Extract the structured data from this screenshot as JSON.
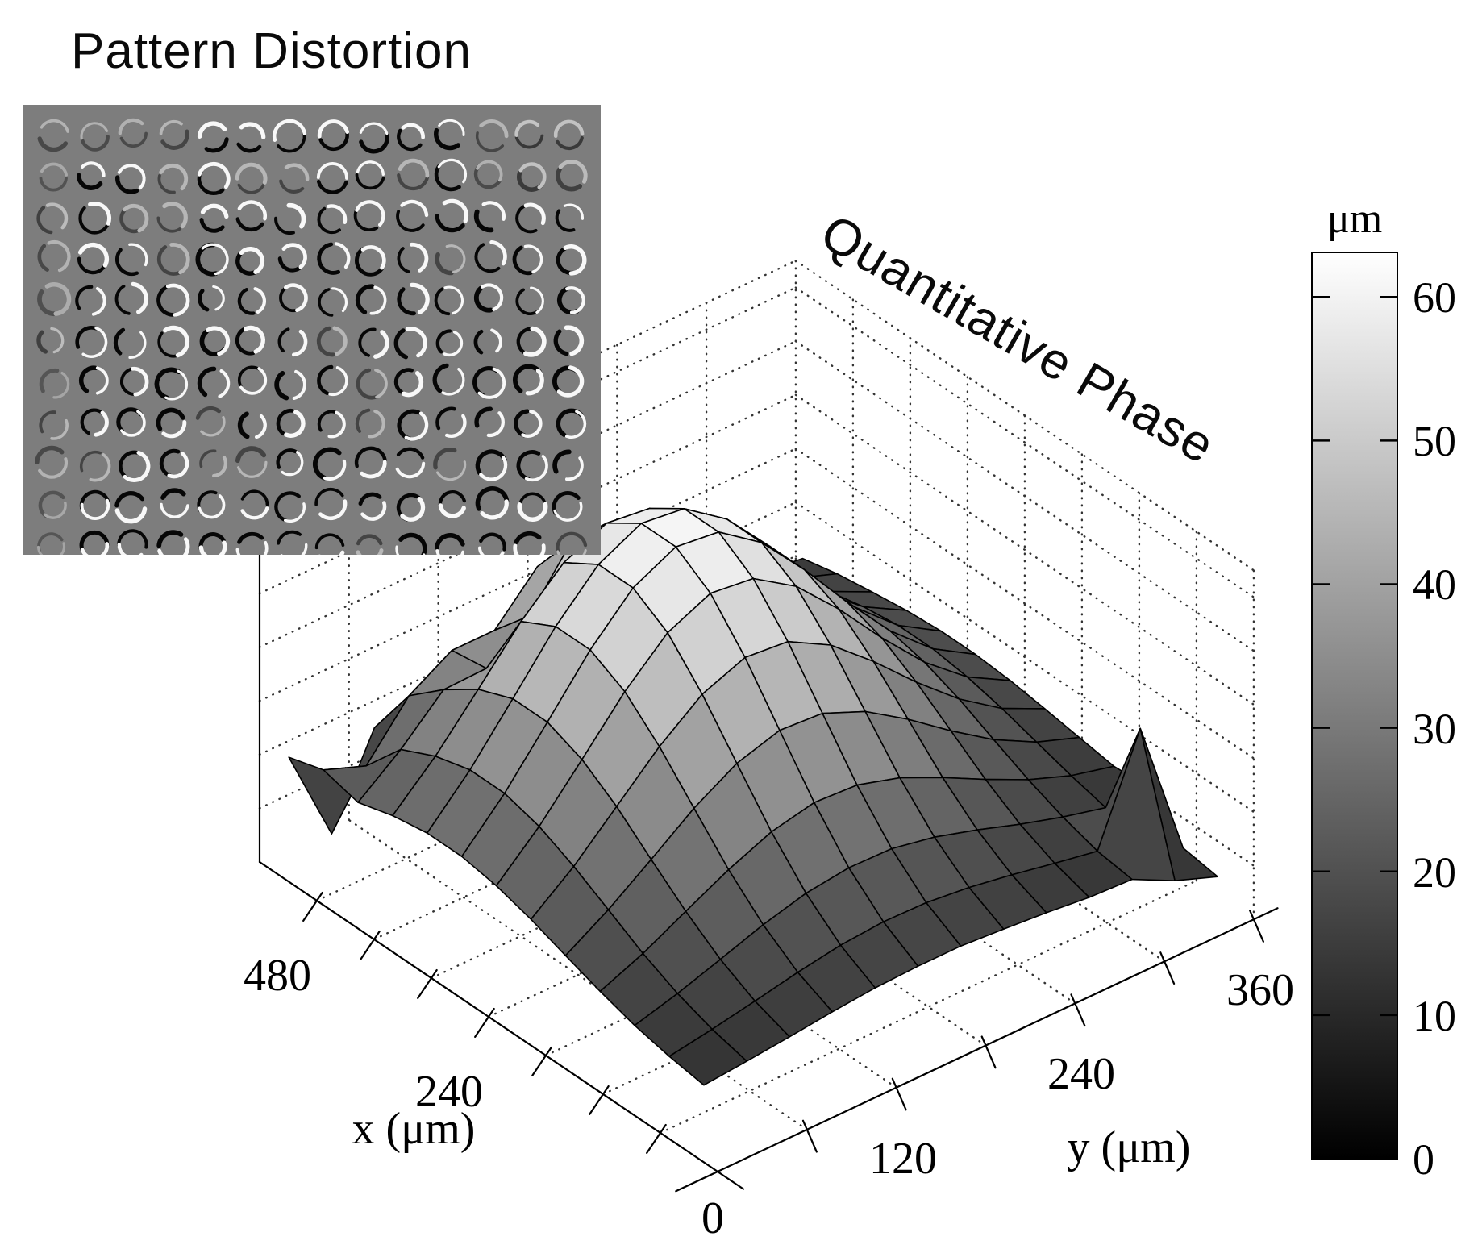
{
  "titles": {
    "inset_title": "Pattern Distortion",
    "surface_title": "Quantitative Phase"
  },
  "inset": {
    "background": "#7d7d7d",
    "rows": 11,
    "cols": 14,
    "highlight_color": "#ffffff",
    "shadow_color": "#000000"
  },
  "colorbar": {
    "unit": "μm",
    "min": 0,
    "max": 63.1,
    "tick_values": [
      0,
      10,
      20,
      30,
      40,
      50,
      60
    ],
    "tick_labels": [
      "0",
      "10",
      "20",
      "30",
      "40",
      "50",
      "60"
    ],
    "color_low": "#000000",
    "color_high": "#ffffff"
  },
  "axes": {
    "x": {
      "title": "x  (μm)",
      "lim": [
        0,
        640
      ],
      "tick_step": 80,
      "tick_labels": [
        {
          "value": 0,
          "label": "0"
        },
        {
          "value": 240,
          "label": "240"
        },
        {
          "value": 480,
          "label": "480"
        }
      ]
    },
    "y": {
      "title": "y (μm)",
      "lim": [
        0,
        360
      ],
      "tick_step": 60,
      "tick_labels": [
        {
          "value": 120,
          "label": "120"
        },
        {
          "value": 240,
          "label": "240"
        },
        {
          "value": 360,
          "label": "360"
        }
      ]
    },
    "z": {
      "lim": [
        0,
        65
      ],
      "grid_step": 10
    }
  },
  "chart_data": {
    "type": "surface",
    "title": "Quantitative Phase",
    "xlabel": "x  (μm)",
    "ylabel": "y (μm)",
    "zunit": "μm",
    "xlim": [
      0,
      640
    ],
    "ylim": [
      0,
      360
    ],
    "zlim": [
      0,
      65
    ],
    "colormap": "gray",
    "grid": true,
    "x": [
      40.0,
      88.3,
      136.7,
      185.0,
      233.3,
      281.7,
      330.0,
      378.3,
      426.7,
      475.0,
      523.3,
      571.7,
      620.0
    ],
    "y": [
      10.0,
      38.75,
      67.5,
      96.25,
      125.0,
      153.75,
      182.5,
      211.25,
      240.0,
      268.75,
      297.5,
      326.25,
      355.0
    ],
    "z": [
      [
        11.2,
        11.9,
        12.7,
        13.6,
        14.3,
        14.6,
        14.6,
        14.0,
        13.3,
        12.4,
        12.0,
        8.0,
        5.0
      ],
      [
        12.2,
        13.5,
        15.0,
        16.6,
        17.9,
        18.5,
        18.3,
        17.4,
        16.0,
        14.4,
        12.9,
        32.0,
        6.0
      ],
      [
        13.6,
        15.8,
        18.4,
        21.1,
        23.2,
        24.2,
        24.0,
        22.4,
        20.0,
        17.3,
        14.9,
        12.9,
        13.0
      ],
      [
        15.6,
        18.9,
        23.0,
        27.0,
        30.3,
        32.0,
        31.5,
        29.1,
        25.4,
        21.3,
        17.5,
        14.5,
        12.5
      ],
      [
        17.9,
        22.7,
        28.3,
        34.1,
        38.7,
        41.1,
        40.5,
        37.1,
        31.9,
        26.0,
        20.6,
        16.4,
        13.5
      ],
      [
        20.3,
        26.4,
        33.8,
        41.2,
        47.2,
        50.3,
        49.5,
        45.1,
        38.3,
        30.7,
        23.8,
        18.3,
        14.5
      ],
      [
        22.2,
        29.5,
        38.2,
        47.1,
        54.3,
        57.9,
        56.9,
        51.7,
        43.7,
        34.6,
        26.3,
        19.8,
        15.4
      ],
      [
        23.3,
        31.3,
        40.8,
        50.5,
        58.3,
        62.2,
        61.2,
        55.5,
        46.7,
        36.9,
        27.8,
        20.7,
        15.9
      ],
      [
        23.3,
        31.3,
        40.8,
        50.5,
        58.3,
        62.2,
        61.2,
        55.5,
        46.7,
        36.9,
        27.8,
        20.7,
        15.9
      ],
      [
        22.2,
        29.5,
        38.2,
        47.1,
        54.3,
        57.9,
        56.9,
        51.7,
        43.7,
        34.6,
        26.3,
        19.8,
        15.4
      ],
      [
        20.3,
        26.4,
        33.8,
        34.0,
        40.0,
        50.3,
        49.5,
        45.1,
        38.3,
        30.7,
        23.8,
        18.3,
        14.5
      ],
      [
        22.0,
        19.0,
        28.3,
        33.0,
        33.0,
        41.1,
        40.5,
        37.1,
        31.9,
        26.0,
        20.6,
        16.4,
        13.5
      ],
      [
        20.0,
        2.0,
        18.0,
        20.0,
        22.0,
        23.0,
        22.0,
        21.0,
        19.0,
        17.0,
        15.0,
        13.0,
        12.0
      ]
    ]
  }
}
